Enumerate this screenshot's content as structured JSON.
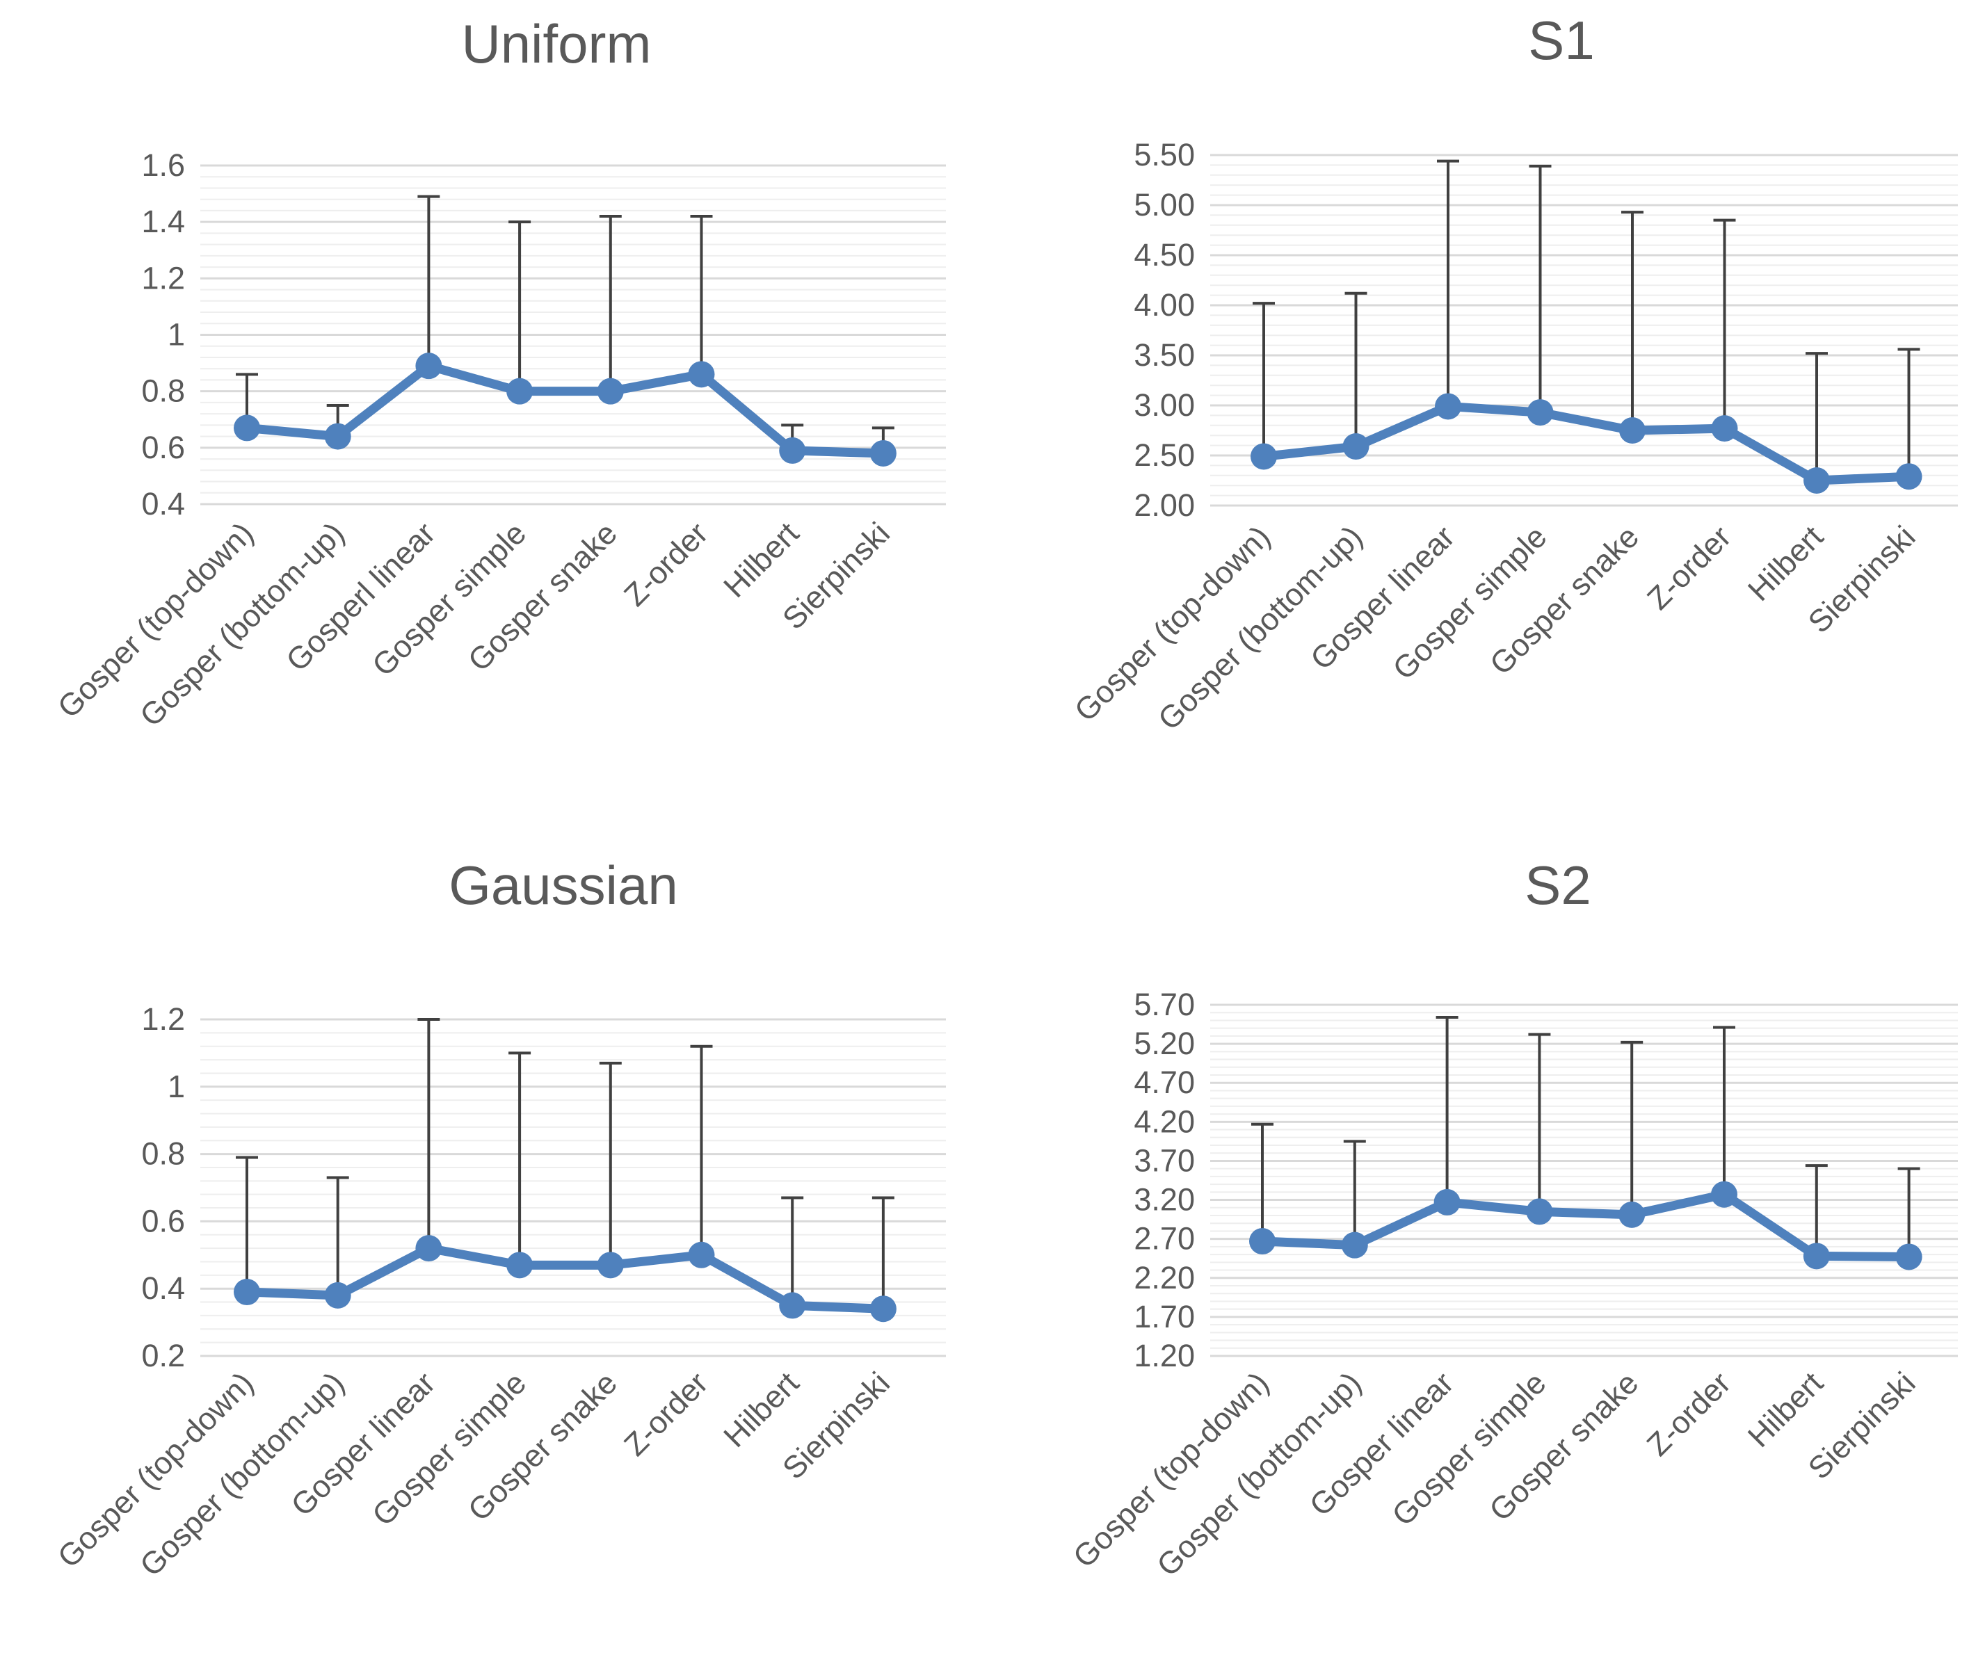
{
  "style": {
    "line_color": "#4f81bd",
    "error_bar_color": "#404040",
    "major_grid_color": "#d9d9d9",
    "minor_grid_color": "#eeeeee",
    "text_color": "#595959"
  },
  "chart_data": [
    {
      "type": "line",
      "title": "Uniform",
      "categories": [
        "Gosper (top-down)",
        "Gosper (bottom-up)",
        "Gosperl linear",
        "Gosper simple",
        "Gosper snake",
        "Z-order",
        "Hilbert",
        "Sierpinski"
      ],
      "values": [
        0.67,
        0.64,
        0.89,
        0.8,
        0.8,
        0.86,
        0.59,
        0.58
      ],
      "error_plus": [
        0.19,
        0.11,
        0.6,
        0.6,
        0.62,
        0.56,
        0.09,
        0.09
      ],
      "ylim": [
        0.4,
        1.6
      ],
      "yticks": [
        "1.6",
        "1.4",
        "1.2",
        "1",
        "0.8",
        "0.6",
        "0.4"
      ],
      "ytick_values": [
        1.6,
        1.4,
        1.2,
        1.0,
        0.8,
        0.6,
        0.4
      ],
      "minor_step": 0.04,
      "xlabel": "",
      "ylabel": "",
      "grid": true,
      "legend": "none"
    },
    {
      "type": "line",
      "title": "S1",
      "categories": [
        "Gosper (top-down)",
        "Gosper (bottom-up)",
        "Gosper linear",
        "Gosper simple",
        "Gosper snake",
        "Z-order",
        "Hilbert",
        "Sierpinski"
      ],
      "values": [
        2.49,
        2.59,
        2.99,
        2.93,
        2.75,
        2.77,
        2.25,
        2.29
      ],
      "error_plus": [
        1.53,
        1.53,
        2.45,
        2.46,
        2.18,
        2.08,
        1.27,
        1.27
      ],
      "ylim": [
        2.0,
        5.5
      ],
      "yticks": [
        "5.50",
        "5.00",
        "4.50",
        "4.00",
        "3.50",
        "3.00",
        "2.50",
        "2.00"
      ],
      "ytick_values": [
        5.5,
        5.0,
        4.5,
        4.0,
        3.5,
        3.0,
        2.5,
        2.0
      ],
      "minor_step": 0.1,
      "xlabel": "",
      "ylabel": "",
      "grid": true,
      "legend": "none"
    },
    {
      "type": "line",
      "title": "Gaussian",
      "categories": [
        "Gosper (top-down)",
        "Gosper (bottom-up)",
        "Gosper linear",
        "Gosper simple",
        "Gosper snake",
        "Z-order",
        "Hilbert",
        "Sierpinski"
      ],
      "values": [
        0.39,
        0.38,
        0.52,
        0.47,
        0.47,
        0.5,
        0.35,
        0.34
      ],
      "error_plus": [
        0.4,
        0.35,
        0.68,
        0.63,
        0.6,
        0.62,
        0.32,
        0.33
      ],
      "ylim": [
        0.2,
        1.2
      ],
      "yticks": [
        "1.2",
        "1",
        "0.8",
        "0.6",
        "0.4",
        "0.2"
      ],
      "ytick_values": [
        1.2,
        1.0,
        0.8,
        0.6,
        0.4,
        0.2
      ],
      "minor_step": 0.04,
      "xlabel": "",
      "ylabel": "",
      "grid": true,
      "legend": "none"
    },
    {
      "type": "line",
      "title": "S2",
      "categories": [
        "Gosper (top-down)",
        "Gosper (bottom-up)",
        "Gosper linear",
        "Gosper simple",
        "Gosper snake",
        "Z-order",
        "Hilbert",
        "Sierpinski"
      ],
      "values": [
        2.67,
        2.62,
        3.17,
        3.05,
        3.01,
        3.27,
        2.48,
        2.47
      ],
      "error_plus": [
        1.5,
        1.33,
        2.37,
        2.27,
        2.21,
        2.14,
        1.16,
        1.13
      ],
      "ylim": [
        1.2,
        5.7
      ],
      "yticks": [
        "5.70",
        "5.20",
        "4.70",
        "4.20",
        "3.70",
        "3.20",
        "2.70",
        "2.20",
        "1.70",
        "1.20"
      ],
      "ytick_values": [
        5.7,
        5.2,
        4.7,
        4.2,
        3.7,
        3.2,
        2.7,
        2.2,
        1.7,
        1.2
      ],
      "minor_step": 0.1,
      "xlabel": "",
      "ylabel": "",
      "grid": true,
      "legend": "none"
    }
  ]
}
